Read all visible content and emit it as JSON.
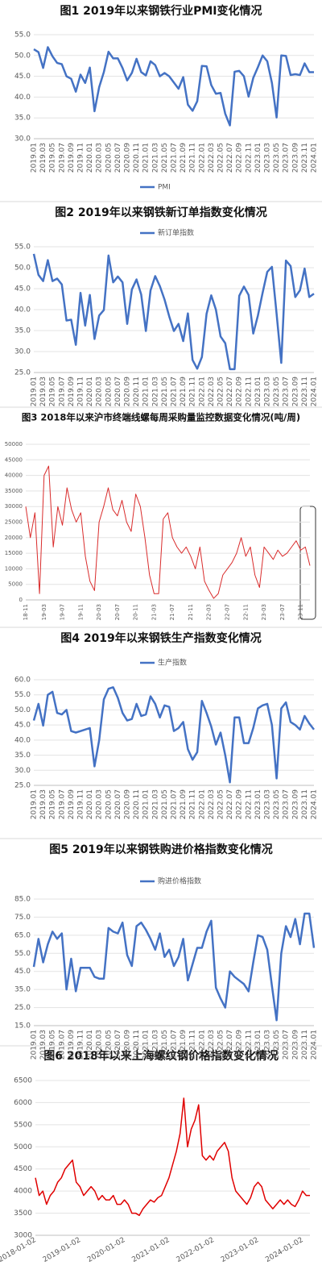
{
  "chart_data": [
    {
      "type": "line",
      "title": "图1 2019年以来钢铁行业PMI变化情况",
      "legend": "bottom",
      "grid": true,
      "categories": [
        "2019.01",
        null,
        "2019.03",
        null,
        "2019.05",
        null,
        "2019.07",
        null,
        "2019.09",
        null,
        "2019.11",
        null,
        "2020.01",
        null,
        "2020.03",
        null,
        "2020.05",
        null,
        "2020.07",
        null,
        "2020.09",
        null,
        "2020.11",
        null,
        "2021.01",
        null,
        "2021.03",
        null,
        "2021.05",
        null,
        "2021.07",
        null,
        "2021.09",
        null,
        "2021.11",
        null,
        "2022.01",
        null,
        "2022.03",
        null,
        "2022.05",
        null,
        "2022.07",
        null,
        "2022.09",
        null,
        "2022.11",
        null,
        "2023.01",
        null,
        "2023.03",
        null,
        "2023.05",
        null,
        "2023.07",
        null,
        "2023.09",
        null,
        "2023.11",
        null,
        "2024.01"
      ],
      "series": [
        {
          "name": "PMI",
          "color": "#4472c4",
          "values": [
            51.5,
            50.8,
            47.0,
            52.0,
            49.8,
            48.2,
            47.9,
            45.0,
            44.4,
            41.3,
            45.4,
            43.4,
            47.1,
            36.6,
            42.4,
            46.0,
            50.9,
            49.3,
            49.3,
            47.0,
            44.0,
            45.8,
            49.2,
            46.0,
            45.2,
            48.6,
            47.7,
            45.0,
            45.8,
            45.0,
            43.5,
            42.0,
            44.8,
            38.2,
            36.7,
            39.0,
            47.5,
            47.4,
            42.9,
            40.8,
            41.0,
            36.0,
            33.2,
            46.1,
            46.3,
            45.0,
            40.1,
            44.6,
            47.2,
            50.0,
            48.6,
            43.4,
            35.1,
            50.0,
            49.9,
            45.3,
            45.5,
            45.3,
            48.1,
            46.0,
            46.0
          ]
        }
      ],
      "ylim": [
        30,
        55
      ],
      "yticks": [
        {
          "value": 30,
          "label": "30.0"
        },
        {
          "value": 35,
          "label": "35.0"
        },
        {
          "value": 40,
          "label": "40.0"
        },
        {
          "value": 45,
          "label": "45.0"
        },
        {
          "value": 50,
          "label": "50.0"
        },
        {
          "value": 55,
          "label": "55.0"
        }
      ]
    },
    {
      "type": "line",
      "title": "图2 2019年以来钢铁新订单指数变化情况",
      "legend": "top",
      "grid": true,
      "categories": [
        "2019.01",
        null,
        "2019.03",
        null,
        "2019.05",
        null,
        "2019.07",
        null,
        "2019.09",
        null,
        "2019.11",
        null,
        "2020.01",
        null,
        "2020.03",
        null,
        "2020.05",
        null,
        "2020.07",
        null,
        "2020.09",
        null,
        "2020.11",
        null,
        "2021.01",
        null,
        "2021.03",
        null,
        "2021.05",
        null,
        "2021.07",
        null,
        "2021.09",
        null,
        "2021.11",
        null,
        "2022.01",
        null,
        "2022.03",
        null,
        "2022.05",
        null,
        "2022.07",
        null,
        "2022.09",
        null,
        "2022.11",
        null,
        "2023.01",
        null,
        "2023.03",
        null,
        "2023.05",
        null,
        "2023.07",
        null,
        "2023.09",
        null,
        "2023.11",
        null,
        "2024.01"
      ],
      "series": [
        {
          "name": "新订单指数",
          "color": "#4472c4",
          "values": [
            53.3,
            48.3,
            46.8,
            51.8,
            46.8,
            47.4,
            46.0,
            37.4,
            37.6,
            31.6,
            44.0,
            36.2,
            43.5,
            33.0,
            38.6,
            39.9,
            52.9,
            46.5,
            47.9,
            46.5,
            36.6,
            44.8,
            47.2,
            43.6,
            34.9,
            44.6,
            48.0,
            45.6,
            42.4,
            38.4,
            34.9,
            36.6,
            32.5,
            39.1,
            28.0,
            25.9,
            28.7,
            39.0,
            43.4,
            40.0,
            33.6,
            32.0,
            25.8,
            25.8,
            43.3,
            45.5,
            43.5,
            34.3,
            38.6,
            44.0,
            49.0,
            50.2,
            39.0,
            27.3,
            51.7,
            50.4,
            43.0,
            44.6,
            49.8,
            43.0,
            43.8
          ]
        }
      ],
      "ylim": [
        25,
        55
      ],
      "yticks": [
        {
          "value": 25,
          "label": "25.0"
        },
        {
          "value": 30,
          "label": "30.0"
        },
        {
          "value": 35,
          "label": "35.0"
        },
        {
          "value": 40,
          "label": "40.0"
        },
        {
          "value": 45,
          "label": "45.0"
        },
        {
          "value": 50,
          "label": "50.0"
        },
        {
          "value": 55,
          "label": "55.0"
        }
      ]
    },
    {
      "type": "line",
      "title": "图3 2018年以来沪市终端线螺每周采购量监控数据变化情况(吨/周)",
      "grid": true,
      "categories": [
        "18-11",
        null,
        null,
        null,
        "19-03",
        null,
        null,
        null,
        "19-07",
        null,
        null,
        null,
        "19-11",
        null,
        null,
        null,
        "20-03",
        null,
        null,
        null,
        "20-07",
        null,
        null,
        null,
        "20-11",
        null,
        null,
        null,
        "21-03",
        null,
        null,
        null,
        "21-07",
        null,
        null,
        null,
        "21-11",
        null,
        null,
        null,
        "22-03",
        null,
        null,
        null,
        "22-07",
        null,
        null,
        null,
        "22-11",
        null,
        null,
        null,
        "23-03",
        null,
        null,
        null,
        "23-07",
        null,
        null,
        null,
        "23-11",
        null,
        null
      ],
      "series": [
        {
          "color": "#d92b2b",
          "values": [
            30000,
            20000,
            28000,
            2000,
            40000,
            43000,
            17000,
            30000,
            24000,
            36000,
            29000,
            25000,
            28000,
            14000,
            6000,
            3000,
            25000,
            30000,
            36000,
            29000,
            27000,
            32000,
            25000,
            22000,
            34000,
            30000,
            20000,
            8000,
            2000,
            2000,
            26000,
            28000,
            20000,
            17000,
            15000,
            17000,
            14000,
            10000,
            17000,
            6000,
            3000,
            500,
            2000,
            8000,
            10000,
            12000,
            15000,
            20000,
            14000,
            17000,
            8000,
            4000,
            17000,
            15000,
            13000,
            16000,
            14000,
            15000,
            17000,
            19000,
            16000,
            17000,
            11000
          ]
        }
      ],
      "ylim": [
        0,
        50000
      ],
      "yticks": [
        0,
        5000,
        10000,
        15000,
        20000,
        25000,
        30000,
        35000,
        40000,
        45000,
        50000
      ]
    },
    {
      "type": "line",
      "title": "图4 2019年以来钢铁生产指数变化情况",
      "legend": "top",
      "grid": true,
      "categories": [
        "2019.01",
        null,
        "2019.03",
        null,
        "2019.05",
        null,
        "2019.07",
        null,
        "2019.09",
        null,
        "2019.11",
        null,
        "2020.01",
        null,
        "2020.03",
        null,
        "2020.05",
        null,
        "2020.07",
        null,
        "2020.09",
        null,
        "2020.11",
        null,
        "2021.01",
        null,
        "2021.03",
        null,
        "2021.05",
        null,
        "2021.07",
        null,
        "2021.09",
        null,
        "2021.11",
        null,
        "2022.01",
        null,
        "2022.03",
        null,
        "2022.05",
        null,
        "2022.07",
        null,
        "2022.09",
        null,
        "2022.11",
        null,
        "2023.01",
        null,
        "2023.03",
        null,
        "2023.05",
        null,
        "2023.07",
        null,
        "2023.09",
        null,
        "2023.11",
        null,
        "2024.01"
      ],
      "series": [
        {
          "name": "生产指数",
          "color": "#4472c4",
          "values": [
            46.5,
            52,
            44.8,
            55,
            56,
            49,
            48.5,
            50,
            43,
            42.5,
            43,
            43.5,
            44,
            31.3,
            40,
            53.5,
            57,
            57.5,
            54,
            49,
            46.5,
            47,
            52,
            48,
            48.5,
            54.5,
            52,
            47.5,
            51.5,
            51,
            43,
            44,
            46,
            37,
            33.5,
            36,
            53,
            49,
            44.5,
            38.5,
            42.5,
            35,
            26,
            47.5,
            47.5,
            39,
            39,
            44,
            50.5,
            51.5,
            52,
            45,
            27.3,
            50.5,
            52.5,
            46,
            45,
            43.5,
            48,
            45.5,
            43.5
          ]
        }
      ],
      "ylim": [
        25,
        60
      ],
      "yticks": [
        {
          "value": 25,
          "label": "25.0"
        },
        {
          "value": 30,
          "label": "30.0"
        },
        {
          "value": 35,
          "label": "35.0"
        },
        {
          "value": 40,
          "label": "40.0"
        },
        {
          "value": 45,
          "label": "45.0"
        },
        {
          "value": 50,
          "label": "50.0"
        },
        {
          "value": 55,
          "label": "55.0"
        },
        {
          "value": 60,
          "label": "60.0"
        }
      ]
    },
    {
      "type": "line",
      "title": "图5 2019年以来钢铁购进价格指数变化情况",
      "legend": "top",
      "grid": true,
      "categories": [
        "2019.01",
        null,
        "2019.03",
        null,
        "2019.05",
        null,
        "2019.07",
        null,
        "2019.09",
        null,
        "2019.11",
        null,
        "2020.01",
        null,
        "2020.03",
        null,
        "2020.05",
        null,
        "2020.07",
        null,
        "2020.09",
        null,
        "2020.11",
        null,
        "2021.01",
        null,
        "2021.03",
        null,
        "2021.05",
        null,
        "2021.07",
        null,
        "2021.09",
        null,
        "2021.11",
        null,
        "2022.01",
        null,
        "2022.03",
        null,
        "2022.05",
        null,
        "2022.07",
        null,
        "2022.09",
        null,
        "2022.11",
        null,
        "2023.01",
        null,
        "2023.03",
        null,
        "2023.05",
        null,
        "2023.07",
        null,
        "2023.09",
        null,
        "2023.11",
        null,
        "2024.01"
      ],
      "series": [
        {
          "name": "购进价格指数",
          "color": "#4472c4",
          "values": [
            47.5,
            63,
            50,
            60,
            67,
            63,
            66,
            35,
            52,
            34,
            47,
            47,
            47,
            42,
            41,
            41,
            69,
            67,
            66,
            72,
            54,
            48,
            70,
            72,
            68,
            63,
            57,
            66,
            53,
            57,
            48,
            53,
            63,
            40,
            49,
            58,
            58,
            67,
            73,
            36,
            30,
            25,
            45,
            42,
            40,
            38,
            34,
            50,
            65,
            64,
            57,
            37,
            18,
            55,
            70,
            64,
            74,
            60,
            77,
            77,
            58
          ]
        }
      ],
      "ylim": [
        15,
        85
      ],
      "yticks": [
        {
          "value": 15,
          "label": "15.0"
        },
        {
          "value": 25,
          "label": "25.0"
        },
        {
          "value": 35,
          "label": "35.0"
        },
        {
          "value": 45,
          "label": "45.0"
        },
        {
          "value": 55,
          "label": "55.0"
        },
        {
          "value": 65,
          "label": "65.0"
        },
        {
          "value": 75,
          "label": "75.0"
        },
        {
          "value": 85,
          "label": "85.0"
        }
      ]
    },
    {
      "type": "line",
      "title": "图6 2018年以来上海螺纹钢价格指数变化情况",
      "grid": true,
      "categories": [
        "2018-01-02",
        null,
        null,
        null,
        null,
        null,
        null,
        null,
        null,
        null,
        null,
        null,
        "2019-01-02",
        null,
        null,
        null,
        null,
        null,
        null,
        null,
        null,
        null,
        null,
        null,
        "2020-01-02",
        null,
        null,
        null,
        null,
        null,
        null,
        null,
        null,
        null,
        null,
        null,
        "2021-01-02",
        null,
        null,
        null,
        null,
        null,
        null,
        null,
        null,
        null,
        null,
        null,
        "2022-01-02",
        null,
        null,
        null,
        null,
        null,
        null,
        null,
        null,
        null,
        null,
        null,
        "2023-01-02",
        null,
        null,
        null,
        null,
        null,
        null,
        null,
        null,
        null,
        null,
        null,
        "2024-01-02",
        null,
        null
      ],
      "series": [
        {
          "color": "#e00000",
          "values": [
            4300,
            3900,
            4000,
            3700,
            3900,
            4000,
            4200,
            4300,
            4500,
            4600,
            4700,
            4200,
            4100,
            3900,
            4000,
            4100,
            4000,
            3800,
            3900,
            3800,
            3800,
            3900,
            3700,
            3700,
            3800,
            3700,
            3500,
            3500,
            3450,
            3600,
            3700,
            3800,
            3750,
            3850,
            3900,
            4100,
            4300,
            4600,
            4900,
            5300,
            6100,
            5000,
            5400,
            5600,
            5950,
            4800,
            4700,
            4800,
            4700,
            4900,
            5000,
            5100,
            4900,
            4300,
            4000,
            3900,
            3800,
            3700,
            3850,
            4100,
            4200,
            4100,
            3800,
            3700,
            3600,
            3700,
            3800,
            3700,
            3800,
            3700,
            3650,
            3800,
            4000,
            3900,
            3900
          ]
        }
      ],
      "ylim": [
        3000,
        6500
      ],
      "yticks": [
        3000,
        3500,
        4000,
        4500,
        5000,
        5500,
        6000,
        6500
      ]
    }
  ]
}
